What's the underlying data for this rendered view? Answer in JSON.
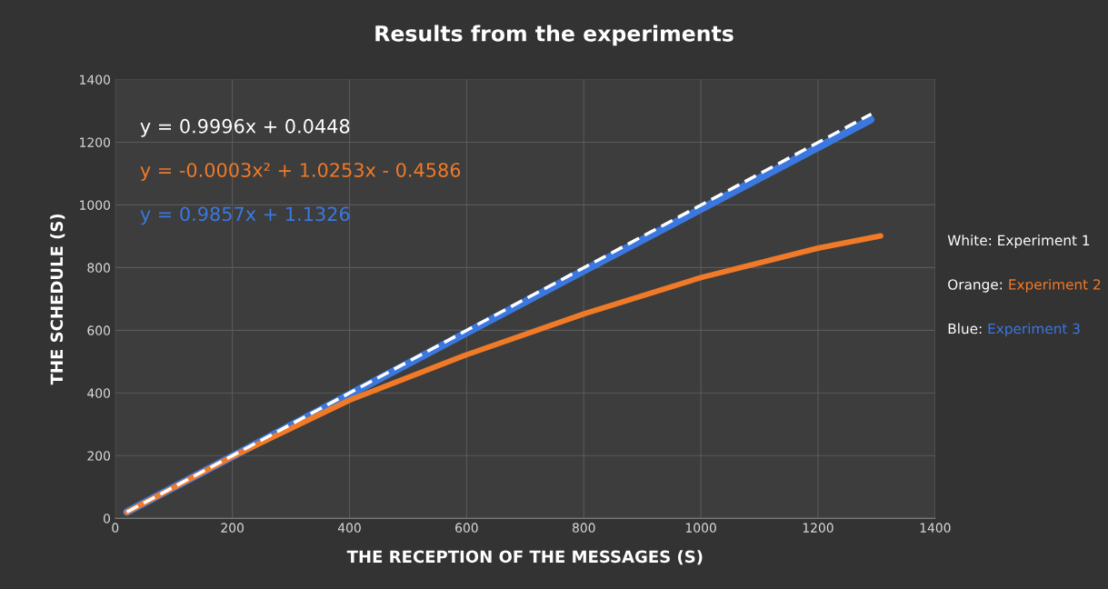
{
  "chart_data": {
    "type": "line",
    "title": "Results from the experiments",
    "xlabel": "THE RECEPTION OF THE MESSAGES (S)",
    "ylabel": "THE SCHEDULE (S)",
    "xlim": [
      0,
      1400
    ],
    "xticks": [
      0,
      200,
      400,
      600,
      800,
      1000,
      1200,
      1400
    ],
    "ylim": [
      0,
      1400
    ],
    "yticks": [
      0,
      200,
      400,
      600,
      800,
      1000,
      1200,
      1400
    ],
    "grid": true,
    "legend": "right",
    "series": [
      {
        "name": "Experiment 3",
        "color": "#3a78e0",
        "line_style": "solid",
        "x": [
          20,
          400,
          800,
          1290
        ],
        "values": [
          20,
          395,
          790,
          1272
        ]
      },
      {
        "name": "Experiment 2",
        "color": "#f07a28",
        "line_style": "solid",
        "x": [
          20,
          200,
          400,
          600,
          800,
          1000,
          1200,
          1307
        ],
        "values": [
          20,
          197,
          377,
          522,
          652,
          768,
          862,
          901
        ]
      },
      {
        "name": "Experiment 1",
        "color": "#ffffff",
        "line_style": "dashed",
        "x": [
          20,
          1291
        ],
        "values": [
          20,
          1290
        ]
      }
    ],
    "annotations": [
      "y = 0.9996x + 0.0448",
      "y = -0.0003x² + 1.0253x - 0.4586",
      "y = 0.9857x + 1.1326",
      "White: ",
      "Orange: ",
      "Blue: "
    ]
  }
}
